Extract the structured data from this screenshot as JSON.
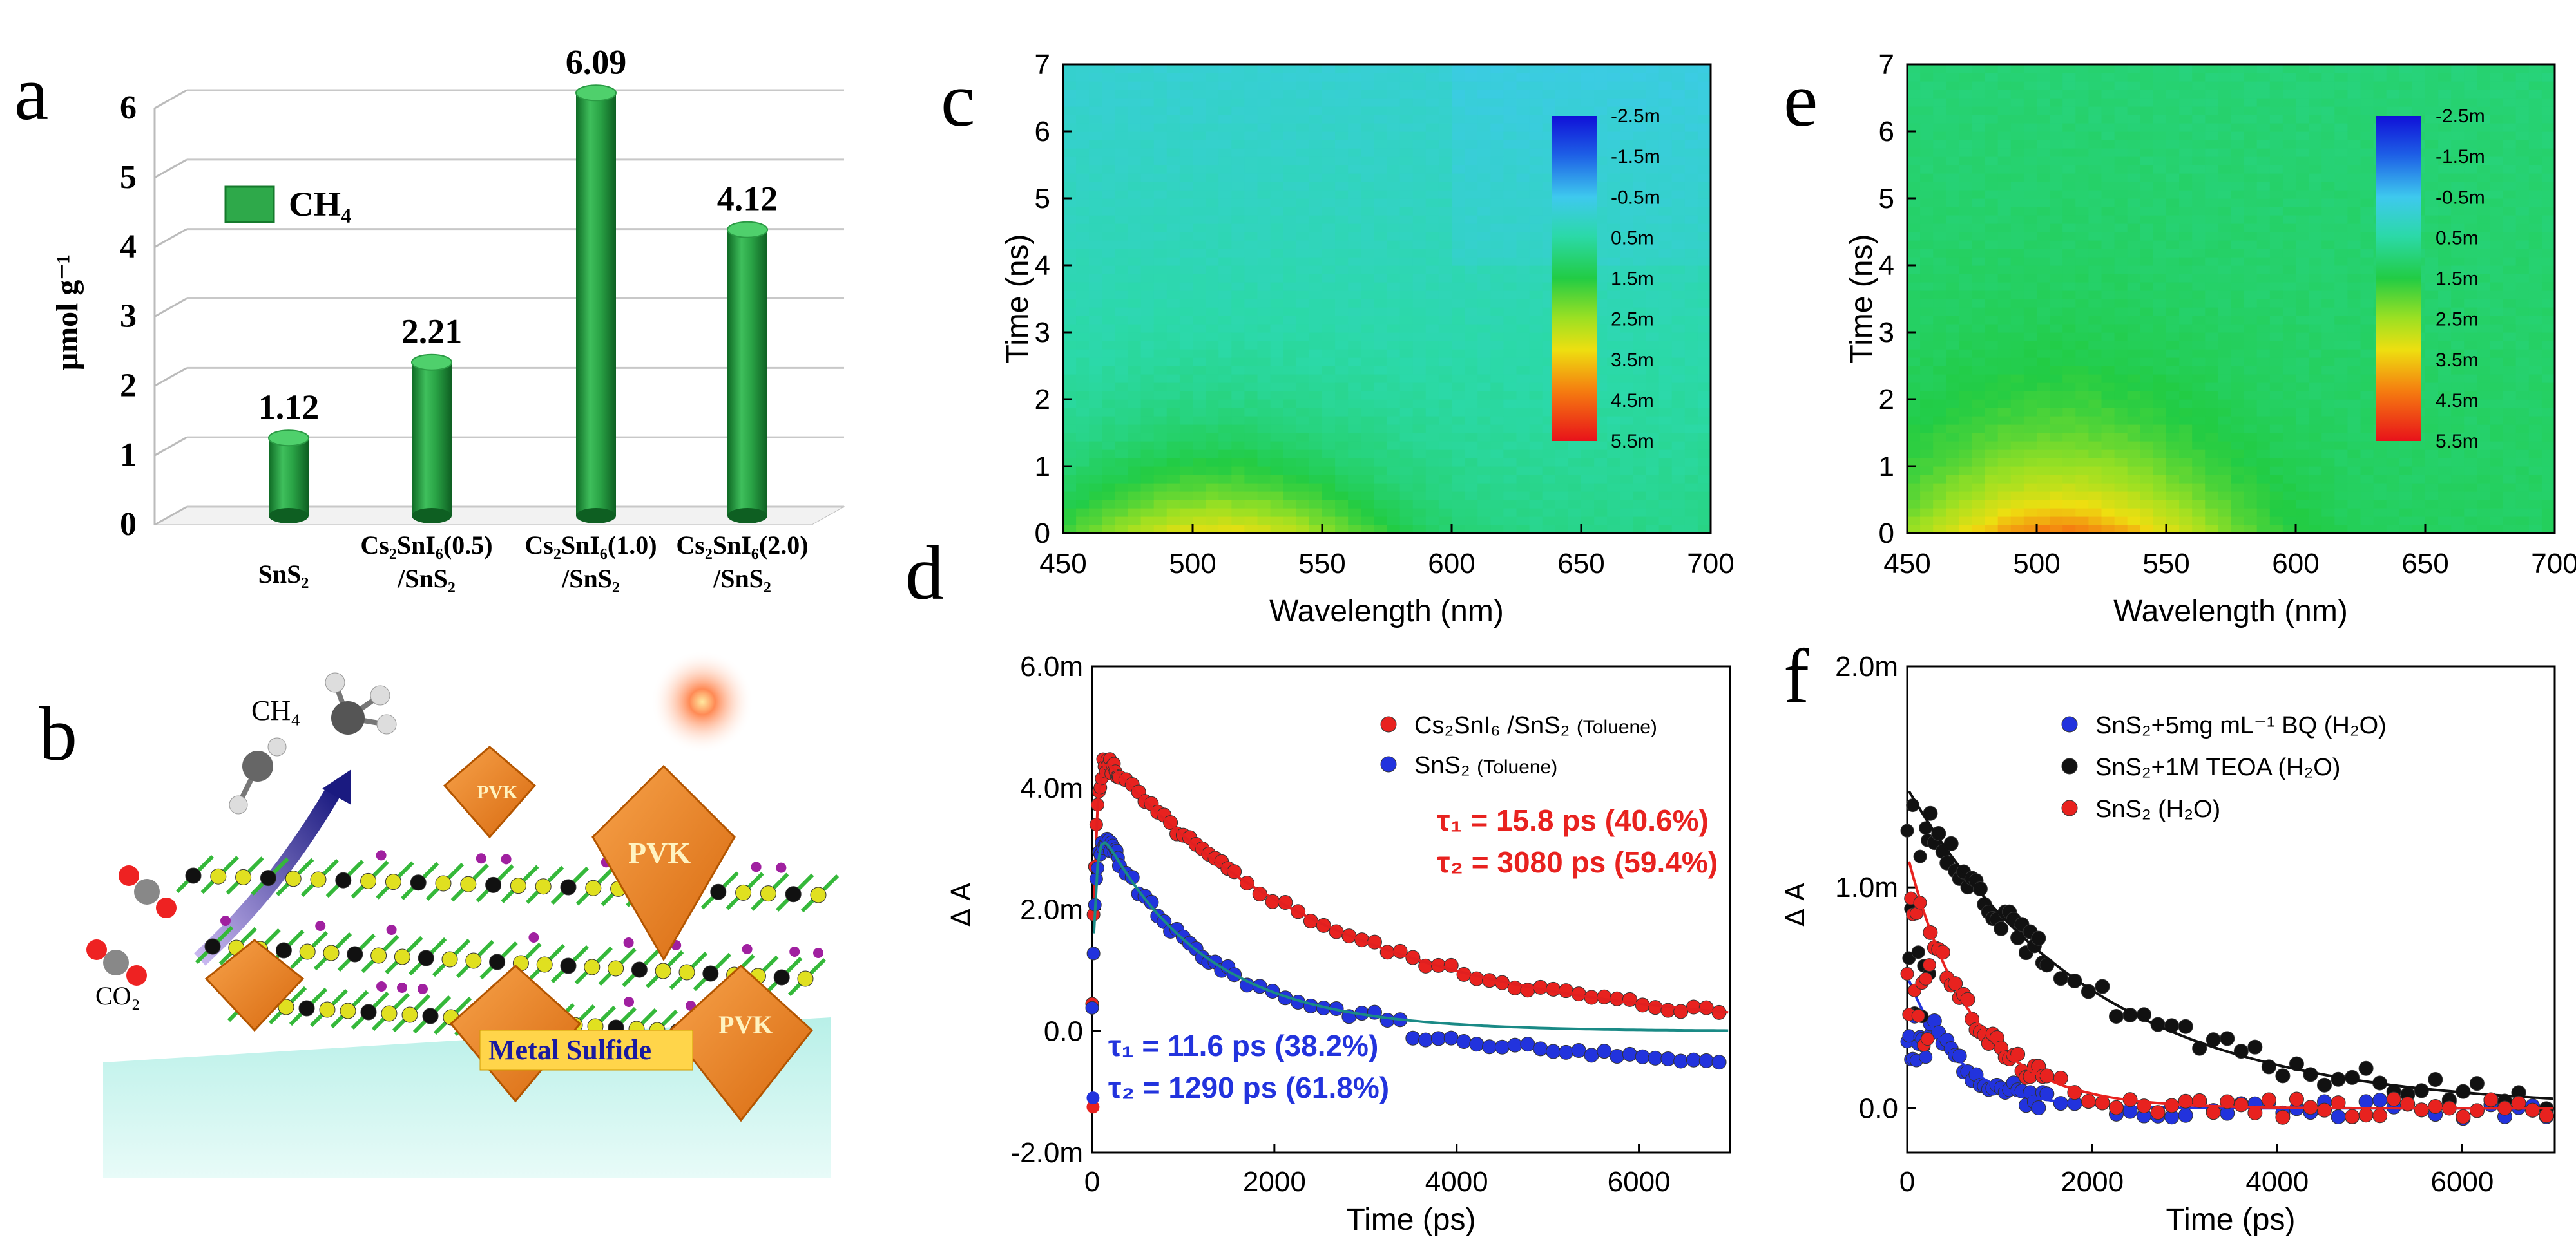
{
  "colors": {
    "bar_green": "#2ea94a",
    "dark_green": "#157a2c",
    "red": "#e8221f",
    "blue": "#2233dd",
    "black": "#111111",
    "teal": "#1a8a86",
    "fit_red": "#e02020"
  },
  "panels": {
    "a": "a",
    "b": "b",
    "c": "c",
    "d": "d",
    "e": "e",
    "f": "f"
  },
  "panel_b": {
    "ch4": "CH₄",
    "co2": "CO₂",
    "pvk": "PVK",
    "metal_sulfide": "Metal Sulfide"
  },
  "chart_data": [
    {
      "panel": "a",
      "type": "bar",
      "ylabel": "μmol g⁻¹",
      "ylim": [
        0,
        6
      ],
      "yticks": [
        "0",
        "1",
        "2",
        "3",
        "4",
        "5",
        "6"
      ],
      "legend": "CH₄",
      "legend_position": "top-left",
      "categories": [
        {
          "line1": "SnS₂",
          "line2": ""
        },
        {
          "line1": "Cs₂SnI₆(0.5)",
          "line2": "/SnS₂"
        },
        {
          "line1": "Cs₂SnI₆(1.0)",
          "line2": "/SnS₂"
        },
        {
          "line1": "Cs₂SnI₆(2.0)",
          "line2": "/SnS₂"
        }
      ],
      "values": [
        1.12,
        2.21,
        6.09,
        4.12
      ],
      "value_labels": [
        "1.12",
        "2.21",
        "6.09",
        "4.12"
      ]
    },
    {
      "panel": "c",
      "type": "heatmap",
      "xlabel": "Wavelength (nm)",
      "ylabel": "Time (ns)",
      "xlim": [
        450,
        700
      ],
      "ylim": [
        0,
        7
      ],
      "xticks": [
        "450",
        "500",
        "550",
        "600",
        "650",
        "700"
      ],
      "yticks": [
        "0",
        "1",
        "2",
        "3",
        "4",
        "5",
        "6",
        "7"
      ],
      "colorbar": [
        "-2.5m",
        "-1.5m",
        "-0.5m",
        "0.5m",
        "1.5m",
        "2.5m",
        "3.5m",
        "4.5m",
        "5.5m"
      ],
      "peak_wavelength": 510,
      "peak_signal": 3.2
    },
    {
      "panel": "e",
      "type": "heatmap",
      "xlabel": "Wavelength (nm)",
      "ylabel": "Time (ns)",
      "xlim": [
        450,
        700
      ],
      "ylim": [
        0,
        7
      ],
      "xticks": [
        "450",
        "500",
        "550",
        "600",
        "650",
        "700"
      ],
      "yticks": [
        "0",
        "1",
        "2",
        "3",
        "4",
        "5",
        "6",
        "7"
      ],
      "colorbar": [
        "-2.5m",
        "-1.5m",
        "-0.5m",
        "0.5m",
        "1.5m",
        "2.5m",
        "3.5m",
        "4.5m",
        "5.5m"
      ],
      "peak_wavelength": 510,
      "peak_signal": 4.3
    },
    {
      "panel": "d",
      "type": "scatter",
      "xlabel": "Time (ps)",
      "ylabel": "Δ A",
      "xlim": [
        0,
        7000
      ],
      "ylim": [
        -2.0,
        6.0
      ],
      "xticks": [
        "0",
        "2000",
        "4000",
        "6000"
      ],
      "yticks": [
        "-2.0m",
        "0.0",
        "2.0m",
        "4.0m",
        "6.0m"
      ],
      "series": [
        {
          "name": "Cs₂SnI₆ /SnS₂",
          "suffix": "(Toluene)",
          "color": "#e8221f",
          "amplitude": 4.75,
          "tau1": 15.8,
          "tau2": 3080,
          "frac1": 0.406,
          "frac2": 0.594
        },
        {
          "name": "SnS₂",
          "suffix": "(Toluene)",
          "color": "#2233dd",
          "amplitude": 3.6,
          "tau1": 11.6,
          "tau2": 1290,
          "frac1": 0.382,
          "frac2": 0.618
        }
      ],
      "annotations": [
        {
          "tau": "τ₁ = 15.8 ps  (40.6%)",
          "color": "#e8221f"
        },
        {
          "tau": "τ₂ = 3080 ps  (59.4%)",
          "color": "#e8221f"
        },
        {
          "tau": "τ₁ = 11.6 ps  (38.2%)",
          "color": "#2233dd"
        },
        {
          "tau": "τ₂ = 1290 ps  (61.8%)",
          "color": "#2233dd"
        }
      ],
      "legend_position": "top-right"
    },
    {
      "panel": "f",
      "type": "scatter",
      "xlabel": "Time (ps)",
      "ylabel": "Δ A",
      "xlim": [
        0,
        7000
      ],
      "ylim": [
        -0.2,
        2.0
      ],
      "xticks": [
        "0",
        "2000",
        "4000",
        "6000"
      ],
      "yticks": [
        "0.0",
        "1.0m",
        "2.0m"
      ],
      "series": [
        {
          "name": "SnS₂+5mg mL⁻¹ BQ (H₂O)",
          "color": "#2233dd",
          "amplitude": 0.6,
          "tau": 550,
          "end": 0.0
        },
        {
          "name": "SnS₂+1M TEOA (H₂O)",
          "color": "#111111",
          "amplitude": 1.45,
          "tau": 2000,
          "end": 0.0
        },
        {
          "name": "SnS₂ (H₂O)",
          "color": "#e8221f",
          "amplitude": 1.15,
          "tau": 700,
          "end": 0.0
        }
      ],
      "legend_position": "top-right"
    }
  ]
}
